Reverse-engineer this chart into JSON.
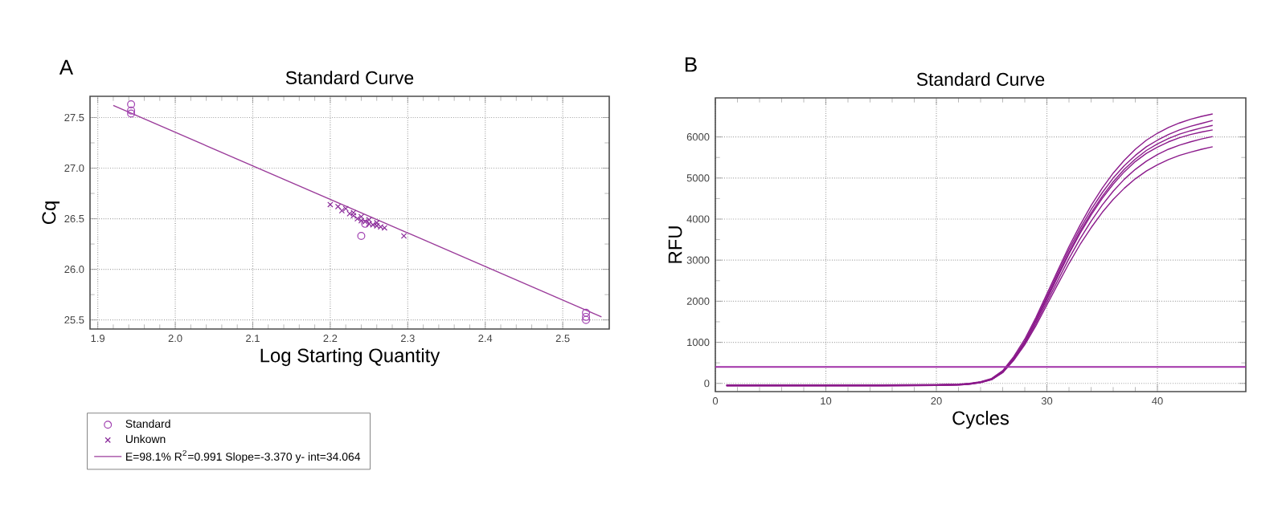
{
  "chart_data": [
    {
      "type": "scatter",
      "title": "Standard Curve",
      "xlabel": "Log Starting Quantity",
      "ylabel": "Cq",
      "annotations": [
        "A"
      ],
      "xlim": [
        1.89,
        2.56
      ],
      "ylim": [
        25.41,
        27.71
      ],
      "xticks": [
        1.9,
        {
          "value": 2.0,
          "label": "2.0"
        },
        2.1,
        2.2,
        2.3,
        2.4,
        2.5
      ],
      "yticks": [
        25.5,
        {
          "value": 26.0,
          "label": "26.0"
        },
        26.5,
        {
          "value": 27.0,
          "label": "27.0"
        },
        27.5
      ],
      "grid": true,
      "legend": "bottom",
      "series": [
        {
          "name": "Standard",
          "color": "#a040b0",
          "marker": "circle",
          "x": [
            1.943,
            1.943,
            1.943,
            2.53,
            2.53,
            2.53,
            2.24,
            2.245
          ],
          "values": [
            27.63,
            27.57,
            27.54,
            25.57,
            25.53,
            25.5,
            26.33,
            26.45
          ]
        },
        {
          "name": "Unkown",
          "color": "#8a2a9a",
          "marker": "cross",
          "x": [
            2.2,
            2.21,
            2.215,
            2.22,
            2.225,
            2.23,
            2.23,
            2.235,
            2.24,
            2.24,
            2.245,
            2.25,
            2.25,
            2.255,
            2.26,
            2.26,
            2.265,
            2.27,
            2.295
          ],
          "values": [
            26.64,
            26.62,
            26.58,
            26.6,
            26.55,
            26.53,
            26.56,
            26.5,
            26.52,
            26.48,
            26.47,
            26.49,
            26.45,
            26.44,
            26.43,
            26.46,
            26.42,
            26.41,
            26.33
          ]
        },
        {
          "name": "E=98.1% R$^{2}$=0.991 Slope=-3.370 y- int=34.064",
          "type": "line",
          "color": "#9b3d9b",
          "marker": "none",
          "x": [
            1.92,
            2.55
          ],
          "values": [
            27.62,
            25.53
          ]
        }
      ]
    },
    {
      "type": "line",
      "title": "Standard Curve",
      "xlabel": "Cycles",
      "ylabel": "RFU",
      "annotations": [
        "B"
      ],
      "xlim": [
        0,
        48
      ],
      "ylim": [
        -200,
        6950
      ],
      "xticks": [
        0,
        10,
        20,
        30,
        40
      ],
      "yticks": [
        0,
        1000,
        2000,
        3000,
        4000,
        5000,
        6000
      ],
      "grid": true,
      "ref_lines": [
        {
          "axis": "y",
          "value": 400,
          "color": "#a030a8"
        }
      ],
      "x": [
        1,
        5,
        10,
        15,
        20,
        22,
        23,
        24,
        25,
        26,
        27,
        28,
        29,
        30,
        31,
        32,
        33,
        34,
        35,
        36,
        37,
        38,
        39,
        40,
        41,
        42,
        43,
        44,
        45
      ],
      "series": [
        {
          "color": "#8b1a8b",
          "values": [
            -40,
            -40,
            -40,
            -40,
            -30,
            -20,
            0,
            40,
            120,
            310,
            650,
            1080,
            1600,
            2180,
            2760,
            3330,
            3850,
            4330,
            4750,
            5120,
            5430,
            5700,
            5920,
            6090,
            6230,
            6340,
            6430,
            6500,
            6560
          ]
        },
        {
          "color": "#8b1a8b",
          "values": [
            -60,
            -60,
            -60,
            -60,
            -50,
            -40,
            -20,
            20,
            90,
            270,
            600,
            1030,
            1550,
            2120,
            2700,
            3260,
            3770,
            4230,
            4640,
            5000,
            5300,
            5550,
            5760,
            5920,
            6060,
            6170,
            6260,
            6330,
            6400
          ]
        },
        {
          "color": "#8b1a8b",
          "values": [
            -50,
            -50,
            -50,
            -50,
            -40,
            -30,
            -10,
            30,
            110,
            290,
            620,
            1020,
            1520,
            2080,
            2640,
            3190,
            3700,
            4150,
            4550,
            4910,
            5210,
            5460,
            5670,
            5830,
            5960,
            6070,
            6150,
            6220,
            6280
          ]
        },
        {
          "color": "#8b1a8b",
          "values": [
            -50,
            -50,
            -50,
            -50,
            -40,
            -30,
            -10,
            30,
            100,
            280,
            600,
            1000,
            1500,
            2050,
            2600,
            3150,
            3650,
            4100,
            4500,
            4850,
            5150,
            5400,
            5600,
            5750,
            5880,
            5980,
            6060,
            6120,
            6170
          ]
        },
        {
          "color": "#8b1a8b",
          "values": [
            -50,
            -50,
            -50,
            -50,
            -40,
            -30,
            -10,
            30,
            100,
            270,
            580,
            970,
            1450,
            1980,
            2510,
            3040,
            3520,
            3950,
            4340,
            4680,
            4970,
            5210,
            5410,
            5570,
            5700,
            5800,
            5880,
            5950,
            6010
          ]
        },
        {
          "color": "#8b1a8b",
          "values": [
            -60,
            -60,
            -60,
            -60,
            -50,
            -40,
            -20,
            20,
            90,
            260,
            560,
            940,
            1400,
            1910,
            2420,
            2920,
            3380,
            3790,
            4160,
            4480,
            4750,
            4980,
            5170,
            5320,
            5450,
            5550,
            5630,
            5700,
            5760
          ]
        }
      ]
    }
  ]
}
